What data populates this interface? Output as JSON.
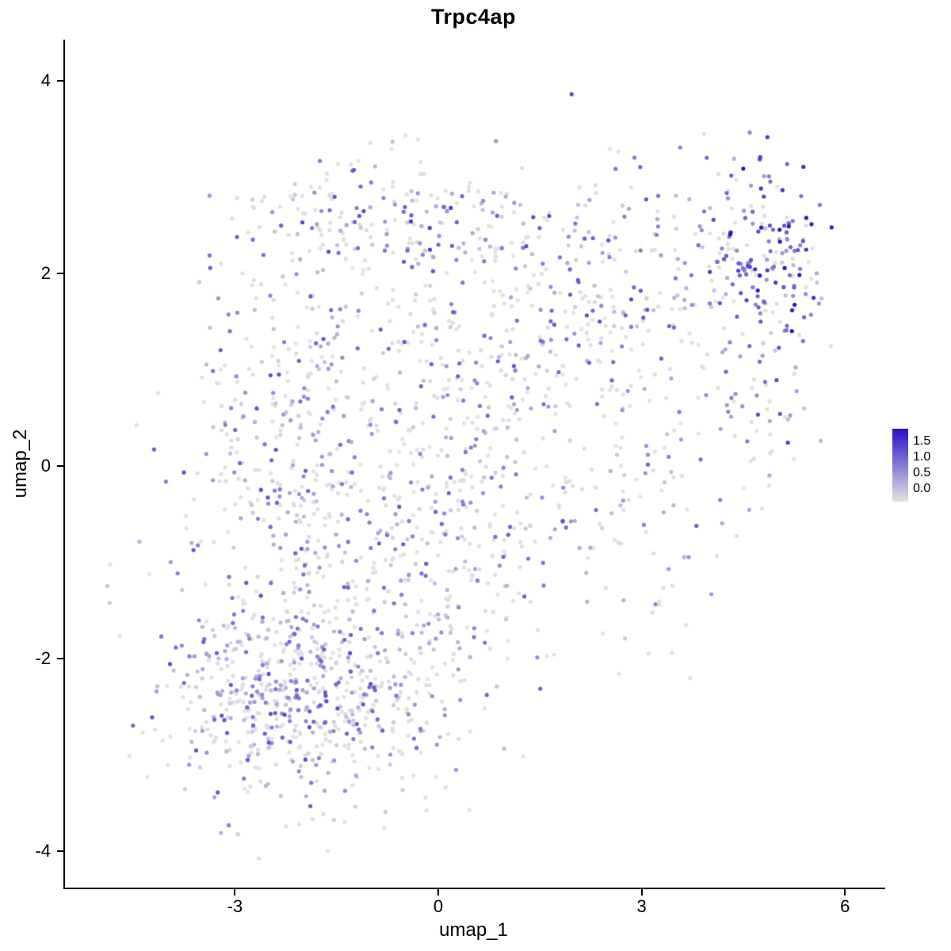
{
  "chart_data": {
    "type": "scatter",
    "title": "Trpc4ap",
    "xlabel": "umap_1",
    "ylabel": "umap_2",
    "xlim": [
      -5.53,
      6.57
    ],
    "ylim": [
      -4.38,
      4.43
    ],
    "grid": false,
    "x_ticks": {
      "values": [
        -3,
        0,
        3,
        6
      ],
      "labels": [
        "-3",
        "0",
        "3",
        "6"
      ]
    },
    "y_ticks": {
      "values": [
        -4,
        -2,
        0,
        2,
        4
      ],
      "labels": [
        "-4",
        "-2",
        "0",
        "2",
        "4"
      ]
    },
    "legend": {
      "position": "right",
      "min": 0.0,
      "max": 1.5,
      "labels": [
        "1.5",
        "1.0",
        "0.5",
        "0.0"
      ],
      "low_color": "#E3E3E3",
      "high_color": "#2713C8"
    },
    "point_radius": 2.6,
    "seed": 12345,
    "points_style": "procedural-gaussian-clusters",
    "clusters": [
      {
        "name": "lower-left-dense",
        "cx": -2.5,
        "cy": -2.35,
        "sx": 0.8,
        "sy": 0.6,
        "n": 420,
        "zero_frac": 0.48,
        "expr_min": 0.15,
        "expr_max": 1.1
      },
      {
        "name": "lower-mid-extension",
        "cx": -1.1,
        "cy": -2.55,
        "sx": 0.9,
        "sy": 0.5,
        "n": 180,
        "zero_frac": 0.52,
        "expr_min": 0.15,
        "expr_max": 1.0
      },
      {
        "name": "left-mid",
        "cx": -2.3,
        "cy": 0.2,
        "sx": 0.75,
        "sy": 1.05,
        "n": 330,
        "zero_frac": 0.5,
        "expr_min": 0.15,
        "expr_max": 1.1
      },
      {
        "name": "center-lower",
        "cx": -0.3,
        "cy": -1.1,
        "sx": 0.9,
        "sy": 0.8,
        "n": 260,
        "zero_frac": 0.52,
        "expr_min": 0.15,
        "expr_max": 1.0
      },
      {
        "name": "center-upper",
        "cx": 0.1,
        "cy": 0.6,
        "sx": 0.9,
        "sy": 0.9,
        "n": 240,
        "zero_frac": 0.52,
        "expr_min": 0.15,
        "expr_max": 1.0
      },
      {
        "name": "top-band",
        "cx": -0.7,
        "cy": 2.55,
        "sx": 1.2,
        "sy": 0.3,
        "n": 200,
        "zero_frac": 0.5,
        "expr_min": 0.15,
        "expr_max": 1.2
      },
      {
        "name": "mid-right",
        "cx": 1.6,
        "cy": 1.4,
        "sx": 0.7,
        "sy": 0.8,
        "n": 140,
        "zero_frac": 0.5,
        "expr_min": 0.15,
        "expr_max": 1.1
      },
      {
        "name": "right-chain",
        "cx": 2.8,
        "cy": 0.0,
        "sx": 0.7,
        "sy": 1.0,
        "n": 130,
        "zero_frac": 0.58,
        "expr_min": 0.15,
        "expr_max": 1.0
      },
      {
        "name": "right-upper-band",
        "cx": 3.2,
        "cy": 2.15,
        "sx": 0.75,
        "sy": 0.45,
        "n": 110,
        "zero_frac": 0.5,
        "expr_min": 0.15,
        "expr_max": 1.1
      },
      {
        "name": "far-right",
        "cx": 4.8,
        "cy": 1.0,
        "sx": 0.5,
        "sy": 0.8,
        "n": 100,
        "zero_frac": 0.45,
        "expr_min": 0.2,
        "expr_max": 1.2
      },
      {
        "name": "top-right-dense",
        "cx": 4.75,
        "cy": 2.3,
        "sx": 0.42,
        "sy": 0.45,
        "n": 130,
        "zero_frac": 0.22,
        "expr_min": 0.5,
        "expr_max": 1.55
      },
      {
        "name": "left-outliers",
        "cx": -4.85,
        "cy": -1.25,
        "sx": 0.06,
        "sy": 0.12,
        "n": 3,
        "zero_frac": 0.4,
        "expr_min": 0.2,
        "expr_max": 0.8
      }
    ]
  }
}
